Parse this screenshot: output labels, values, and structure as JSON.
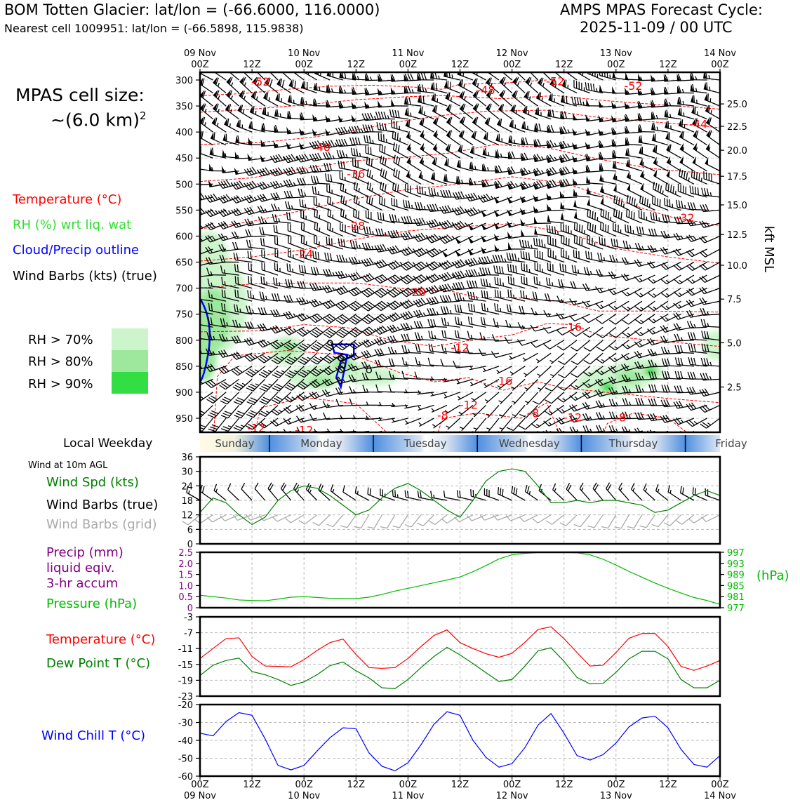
{
  "header": {
    "title": "BOM Totten Glacier: lat/lon = (-66.6000, 116.0000)",
    "subtitle": "Nearest cell 1009951: lat/lon = (-66.5898, 115.9838)",
    "cycle_label": "AMPS MPAS Forecast Cycle:",
    "cycle_value": "2025-11-09 / 00 UTC"
  },
  "left_panel": {
    "cell_size_label": "MPAS cell size:",
    "cell_size_value": "~(6.0 km)",
    "cell_size_sup": "2",
    "legend_temperature": "Temperature (°C)",
    "legend_rh": "RH (%) wrt liq. wat",
    "legend_cloud": "Cloud/Precip outline",
    "legend_barbs": "Wind Barbs (kts) (true)",
    "rh_levels": [
      {
        "label": "RH > 70%",
        "color": "#ccf5cc"
      },
      {
        "label": "RH > 80%",
        "color": "#9ee89e"
      },
      {
        "label": "RH > 90%",
        "color": "#33dd44"
      }
    ],
    "weekday_label": "Local Weekday",
    "wind10m_label": "Wind at 10m AGL",
    "wind_spd_label": "Wind Spd (kts)",
    "wind_barbs_true_label": "Wind Barbs (true)",
    "wind_barbs_grid_label": "Wind Barbs (grid)",
    "precip_label_1": "Precip (mm)",
    "precip_label_2": "liquid eqiv.",
    "precip_label_3": "3-hr accum",
    "pressure_label": "Pressure (hPa)",
    "temp_label": "Temperature (°C)",
    "dewpoint_label": "Dew Point T (°C)",
    "windchill_label": "Wind Chill T (°C)"
  },
  "colors": {
    "temperature": "#ff0000",
    "rh": "#33dd33",
    "cloud": "#0000ff",
    "wind_speed": "#008000",
    "precip": "#800080",
    "pressure": "#00bb00",
    "dewpoint": "#008000",
    "windchill": "#0000ff",
    "grid_barbs": "#aaaaaa"
  },
  "time_axis": {
    "top_labels": [
      {
        "day": "09 Nov",
        "hour": "00Z"
      },
      {
        "day": "",
        "hour": "12Z"
      },
      {
        "day": "10 Nov",
        "hour": "00Z"
      },
      {
        "day": "",
        "hour": "12Z"
      },
      {
        "day": "11 Nov",
        "hour": "00Z"
      },
      {
        "day": "",
        "hour": "12Z"
      },
      {
        "day": "12 Nov",
        "hour": "00Z"
      },
      {
        "day": "",
        "hour": "12Z"
      },
      {
        "day": "13 Nov",
        "hour": "00Z"
      },
      {
        "day": "",
        "hour": "12Z"
      },
      {
        "day": "14 Nov",
        "hour": "00Z"
      }
    ]
  },
  "weekdays": [
    "Sunday",
    "Monday",
    "Tuesday",
    "Wednesday",
    "Thursday",
    "Friday"
  ],
  "chart_data": [
    {
      "type": "heatmap",
      "name": "time-height cross section",
      "yaxis_left_ticks": [
        "300",
        "350",
        "400",
        "450",
        "500",
        "550",
        "600",
        "650",
        "700",
        "750",
        "800",
        "850",
        "900",
        "950"
      ],
      "yaxis_right_label": "kft MSL",
      "yaxis_right_ticks": [
        {
          "label": "25.0",
          "p": 346
        },
        {
          "label": "22.5",
          "p": 389
        },
        {
          "label": "20.0",
          "p": 435
        },
        {
          "label": "17.5",
          "p": 485
        },
        {
          "label": "15.0",
          "p": 540
        },
        {
          "label": "12.5",
          "p": 597
        },
        {
          "label": "10.0",
          "p": 656
        },
        {
          "label": "7.5",
          "p": 721
        },
        {
          "label": "5.0",
          "p": 805
        },
        {
          "label": "2.5",
          "p": 890
        }
      ],
      "temperature_contour_labels": [
        {
          "label": "-52",
          "t": 14,
          "p": 303
        },
        {
          "label": "-48",
          "t": 66,
          "p": 319
        },
        {
          "label": "-52",
          "t": 82,
          "p": 302
        },
        {
          "label": "-52",
          "t": 100,
          "p": 311
        },
        {
          "label": "-44",
          "t": 115,
          "p": 384
        },
        {
          "label": "-40",
          "t": 28,
          "p": 429
        },
        {
          "label": "-36",
          "t": 36,
          "p": 480
        },
        {
          "label": "-32",
          "t": 112,
          "p": 564
        },
        {
          "label": "-28",
          "t": 36,
          "p": 580
        },
        {
          "label": "-24",
          "t": 24,
          "p": 634
        },
        {
          "label": "-20",
          "t": 50,
          "p": 707
        },
        {
          "label": "-16",
          "t": 86,
          "p": 774
        },
        {
          "label": "-12",
          "t": 60,
          "p": 814
        },
        {
          "label": "-16",
          "t": 70,
          "p": 878
        },
        {
          "label": "-12",
          "t": 62,
          "p": 924
        },
        {
          "label": "-8",
          "t": 56,
          "p": 944
        },
        {
          "label": "-8",
          "t": 77,
          "p": 940
        },
        {
          "label": "-12",
          "t": 86,
          "p": 948
        },
        {
          "label": "-8",
          "t": 97,
          "p": 948
        },
        {
          "label": "-12",
          "t": 13,
          "p": 968
        },
        {
          "label": "-12",
          "t": 24,
          "p": 972
        }
      ]
    },
    {
      "type": "line",
      "name": "Wind Spd (kts)",
      "yticks": [
        "0",
        "6",
        "12",
        "18",
        "24",
        "30",
        "36"
      ],
      "ylim": [
        0,
        36
      ],
      "x_hours": [
        0,
        3,
        6,
        9,
        12,
        15,
        18,
        21,
        24,
        27,
        30,
        33,
        36,
        39,
        42,
        45,
        48,
        51,
        54,
        57,
        60,
        63,
        66,
        69,
        72,
        75,
        78,
        81,
        84,
        87,
        90,
        93,
        96,
        99,
        102,
        105,
        108,
        111,
        114,
        117,
        120
      ],
      "values": [
        13,
        19,
        17,
        12,
        8,
        11,
        18,
        22,
        24,
        23,
        20,
        16,
        12,
        14,
        19,
        23,
        25,
        22,
        18,
        14,
        11,
        18,
        26,
        30,
        31,
        30,
        24,
        17,
        17,
        18,
        17,
        18,
        18,
        17,
        16,
        13,
        14,
        17,
        20,
        22,
        20
      ],
      "grid_barb_values": [
        12,
        12,
        11,
        11,
        11,
        10,
        10,
        10,
        11,
        11,
        11,
        11,
        11,
        11,
        11,
        12,
        12,
        11,
        11,
        11,
        11,
        11,
        11,
        11,
        11,
        11,
        11,
        11,
        11,
        11,
        10,
        10,
        9,
        8,
        9,
        10,
        11,
        11,
        12,
        12,
        12
      ]
    },
    {
      "type": "line",
      "name": "Precip / Pressure",
      "yticks_left": [
        "0",
        "0.5",
        "1.0",
        "1.5",
        "2.0",
        "2.5"
      ],
      "ylim_left": [
        0,
        2.5
      ],
      "yticks_right": [
        "977",
        "981",
        "985",
        "989",
        "993",
        "997"
      ],
      "ylim_right": [
        977,
        997
      ],
      "x_hours": [
        0,
        6,
        9,
        12,
        15,
        18,
        21,
        24,
        27,
        30,
        33,
        36,
        39,
        42,
        45,
        48,
        51,
        54,
        57,
        60,
        63,
        66,
        69,
        72,
        75,
        78,
        81,
        84,
        87,
        90,
        93,
        96,
        99,
        102,
        105,
        108,
        111,
        114,
        117,
        120
      ],
      "pressure": [
        981.5,
        980.5,
        979.8,
        979.6,
        979.5,
        980.1,
        980.8,
        981.0,
        980.7,
        980.4,
        980.3,
        980.3,
        980.8,
        981.8,
        983.0,
        984.0,
        985.0,
        986.0,
        987.0,
        988.1,
        990.0,
        992.2,
        994.6,
        996.1,
        996.6,
        996.9,
        997.0,
        997.0,
        996.8,
        996.1,
        994.5,
        992.4,
        990.1,
        988.0,
        985.9,
        984.0,
        982.3,
        980.7,
        979.6,
        978.2
      ],
      "precip": [
        0,
        0,
        0,
        0,
        0,
        0,
        0,
        0,
        0,
        0,
        0,
        0,
        0,
        0,
        0,
        0,
        0,
        0,
        0,
        0,
        0,
        0,
        0,
        0,
        0,
        0,
        0,
        0,
        0,
        0,
        0,
        0,
        0,
        0,
        0,
        0,
        0,
        0,
        0,
        0
      ]
    },
    {
      "type": "line",
      "name": "Temperature / Dew Point",
      "yticks": [
        "-3",
        "-7",
        "-11",
        "-15",
        "-19",
        "-23"
      ],
      "ylim": [
        -23,
        -3
      ],
      "x_hours": [
        0,
        3,
        6,
        9,
        12,
        15,
        18,
        21,
        24,
        27,
        30,
        33,
        36,
        39,
        42,
        45,
        48,
        51,
        54,
        57,
        60,
        63,
        66,
        69,
        72,
        75,
        78,
        81,
        84,
        87,
        90,
        93,
        96,
        99,
        102,
        105,
        108,
        111,
        114,
        117,
        120
      ],
      "temperature": [
        -13.5,
        -11,
        -8.5,
        -8.3,
        -13,
        -15.4,
        -15.5,
        -15.6,
        -13.8,
        -11.5,
        -9.5,
        -8.6,
        -12.5,
        -15.8,
        -16,
        -15.8,
        -13.5,
        -10.5,
        -7.7,
        -6.3,
        -9.5,
        -11,
        -12.3,
        -13.2,
        -12.2,
        -9.4,
        -6.2,
        -5.5,
        -8.5,
        -12,
        -15.4,
        -15.2,
        -12,
        -8.4,
        -7.2,
        -7.2,
        -10.5,
        -15.5,
        -16.5,
        -15.4,
        -14
      ],
      "dewpoint": [
        -17.8,
        -15.2,
        -14,
        -13.4,
        -16.8,
        -17.6,
        -18.8,
        -20.3,
        -19.4,
        -17.6,
        -15.3,
        -14.4,
        -16.6,
        -18.4,
        -20.9,
        -21.1,
        -18.8,
        -15.8,
        -13,
        -10.7,
        -12.6,
        -14.8,
        -17.1,
        -19.3,
        -18.8,
        -15.4,
        -11.6,
        -10.8,
        -14.2,
        -18.3,
        -19.9,
        -19.8,
        -17,
        -13.6,
        -11.7,
        -11.7,
        -13.6,
        -18.8,
        -20.9,
        -20.9,
        -19
      ]
    },
    {
      "type": "line",
      "name": "Wind Chill T",
      "yticks": [
        "-20",
        "-30",
        "-40",
        "-50",
        "-60"
      ],
      "ylim": [
        -60,
        -20
      ],
      "x_hours": [
        0,
        3,
        6,
        9,
        12,
        15,
        18,
        21,
        24,
        27,
        30,
        33,
        36,
        39,
        42,
        45,
        48,
        51,
        54,
        57,
        60,
        63,
        66,
        69,
        72,
        75,
        78,
        81,
        84,
        87,
        90,
        93,
        96,
        99,
        102,
        105,
        108,
        111,
        114,
        117,
        120
      ],
      "values": [
        -36,
        -37.5,
        -29.5,
        -24.5,
        -26,
        -39,
        -54,
        -56.5,
        -54,
        -46,
        -38.5,
        -33,
        -33.5,
        -47,
        -54.5,
        -57,
        -52.5,
        -42.5,
        -31,
        -24,
        -26,
        -40,
        -49.5,
        -55,
        -53,
        -44,
        -31.5,
        -25,
        -36,
        -48.5,
        -51,
        -48,
        -41.5,
        -32.5,
        -27.5,
        -26.5,
        -33,
        -45,
        -53.5,
        -55,
        -48.5
      ]
    }
  ]
}
